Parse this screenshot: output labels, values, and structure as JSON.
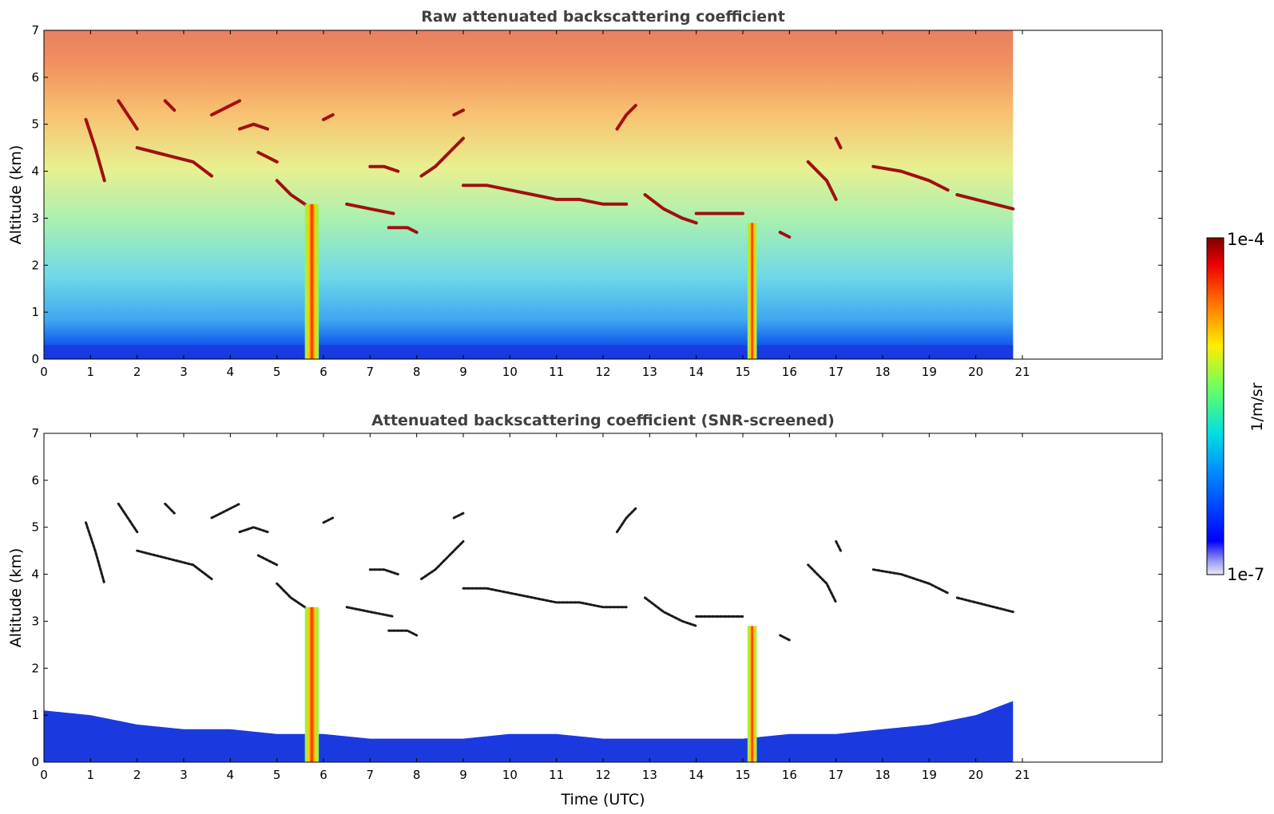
{
  "chart_data": [
    {
      "type": "heatmap",
      "title": "Raw attenuated backscattering coefficient",
      "xlabel": "",
      "ylabel": "Altitude (km)",
      "xlim": [
        0,
        24
      ],
      "ylim": [
        0,
        7
      ],
      "x_ticks": [
        0,
        1,
        2,
        3,
        4,
        5,
        6,
        7,
        8,
        9,
        10,
        11,
        12,
        13,
        14,
        15,
        16,
        17,
        18,
        19,
        20,
        21
      ],
      "y_ticks": [
        0,
        1,
        2,
        3,
        4,
        5,
        6,
        7
      ],
      "data_end_time": 20.8,
      "screened": false,
      "vertical_columns": [
        {
          "x_start": 5.6,
          "x_end": 5.9,
          "top": 3.3
        },
        {
          "x_start": 15.1,
          "x_end": 15.3,
          "top": 2.9
        }
      ],
      "cloud_layers": [
        {
          "x": [
            0.9,
            1.1,
            1.3
          ],
          "y": [
            5.1,
            4.5,
            3.8
          ]
        },
        {
          "x": [
            1.6,
            1.8,
            2.0
          ],
          "y": [
            5.5,
            5.2,
            4.9
          ]
        },
        {
          "x": [
            2.0,
            2.4,
            2.8,
            3.2,
            3.6
          ],
          "y": [
            4.5,
            4.4,
            4.3,
            4.2,
            3.9
          ]
        },
        {
          "x": [
            2.6,
            2.7,
            2.8
          ],
          "y": [
            5.5,
            5.4,
            5.3
          ]
        },
        {
          "x": [
            3.6,
            3.8,
            4.0,
            4.2
          ],
          "y": [
            5.2,
            5.3,
            5.4,
            5.5
          ]
        },
        {
          "x": [
            4.2,
            4.5,
            4.8
          ],
          "y": [
            4.9,
            5.0,
            4.9
          ]
        },
        {
          "x": [
            4.6,
            4.8,
            5.0
          ],
          "y": [
            4.4,
            4.3,
            4.2
          ]
        },
        {
          "x": [
            5.0,
            5.3,
            5.6,
            5.8
          ],
          "y": [
            3.8,
            3.5,
            3.3,
            3.1
          ]
        },
        {
          "x": [
            6.0,
            6.2
          ],
          "y": [
            5.1,
            5.2
          ]
        },
        {
          "x": [
            6.5,
            7.0,
            7.5
          ],
          "y": [
            3.3,
            3.2,
            3.1
          ]
        },
        {
          "x": [
            7.0,
            7.3,
            7.6
          ],
          "y": [
            4.1,
            4.1,
            4.0
          ]
        },
        {
          "x": [
            7.4,
            7.8,
            8.0
          ],
          "y": [
            2.8,
            2.8,
            2.7
          ]
        },
        {
          "x": [
            8.1,
            8.4,
            8.7,
            9.0
          ],
          "y": [
            3.9,
            4.1,
            4.4,
            4.7
          ]
        },
        {
          "x": [
            8.8,
            9.0
          ],
          "y": [
            5.2,
            5.3
          ]
        },
        {
          "x": [
            9.0,
            9.5,
            10.0,
            10.5,
            11.0,
            11.5,
            12.0,
            12.5
          ],
          "y": [
            3.7,
            3.7,
            3.6,
            3.5,
            3.4,
            3.4,
            3.3,
            3.3
          ]
        },
        {
          "x": [
            12.3,
            12.5,
            12.7
          ],
          "y": [
            4.9,
            5.2,
            5.4
          ]
        },
        {
          "x": [
            12.9,
            13.3,
            13.7,
            14.0
          ],
          "y": [
            3.5,
            3.2,
            3.0,
            2.9
          ]
        },
        {
          "x": [
            14.0,
            14.5,
            15.0
          ],
          "y": [
            3.1,
            3.1,
            3.1
          ]
        },
        {
          "x": [
            15.8,
            16.0
          ],
          "y": [
            2.7,
            2.6
          ]
        },
        {
          "x": [
            16.4,
            16.8,
            17.0
          ],
          "y": [
            4.2,
            3.8,
            3.4
          ]
        },
        {
          "x": [
            17.0,
            17.1
          ],
          "y": [
            4.7,
            4.5
          ]
        },
        {
          "x": [
            17.8,
            18.4,
            19.0,
            19.4
          ],
          "y": [
            4.1,
            4.0,
            3.8,
            3.6
          ]
        },
        {
          "x": [
            19.6,
            20.0,
            20.4,
            20.8
          ],
          "y": [
            3.5,
            3.4,
            3.3,
            3.2
          ]
        }
      ]
    },
    {
      "type": "heatmap",
      "title": "Attenuated backscattering coefficient (SNR-screened)",
      "xlabel": "Time (UTC)",
      "ylabel": "Altitude (km)",
      "xlim": [
        0,
        24
      ],
      "ylim": [
        0,
        7
      ],
      "x_ticks": [
        0,
        1,
        2,
        3,
        4,
        5,
        6,
        7,
        8,
        9,
        10,
        11,
        12,
        13,
        14,
        15,
        16,
        17,
        18,
        19,
        20,
        21
      ],
      "y_ticks": [
        0,
        1,
        2,
        3,
        4,
        5,
        6,
        7
      ],
      "data_end_time": 20.8,
      "screened": true,
      "boundary_layer_top": {
        "x": [
          0,
          1,
          2,
          3,
          4,
          5,
          6,
          7,
          8,
          9,
          10,
          11,
          12,
          13,
          14,
          15,
          16,
          17,
          18,
          19,
          20,
          20.8
        ],
        "y": [
          1.1,
          1.0,
          0.8,
          0.7,
          0.7,
          0.6,
          0.6,
          0.5,
          0.5,
          0.5,
          0.6,
          0.6,
          0.5,
          0.5,
          0.5,
          0.5,
          0.6,
          0.6,
          0.7,
          0.8,
          1.0,
          1.3
        ]
      },
      "vertical_columns": [
        {
          "x_start": 5.6,
          "x_end": 5.9,
          "top": 3.3
        },
        {
          "x_start": 15.1,
          "x_end": 15.3,
          "top": 2.9
        }
      ]
    }
  ],
  "colorbar": {
    "label": "1/m/sr",
    "max_label": "1e-4",
    "min_label": "1e-7",
    "colormap": "jet"
  }
}
